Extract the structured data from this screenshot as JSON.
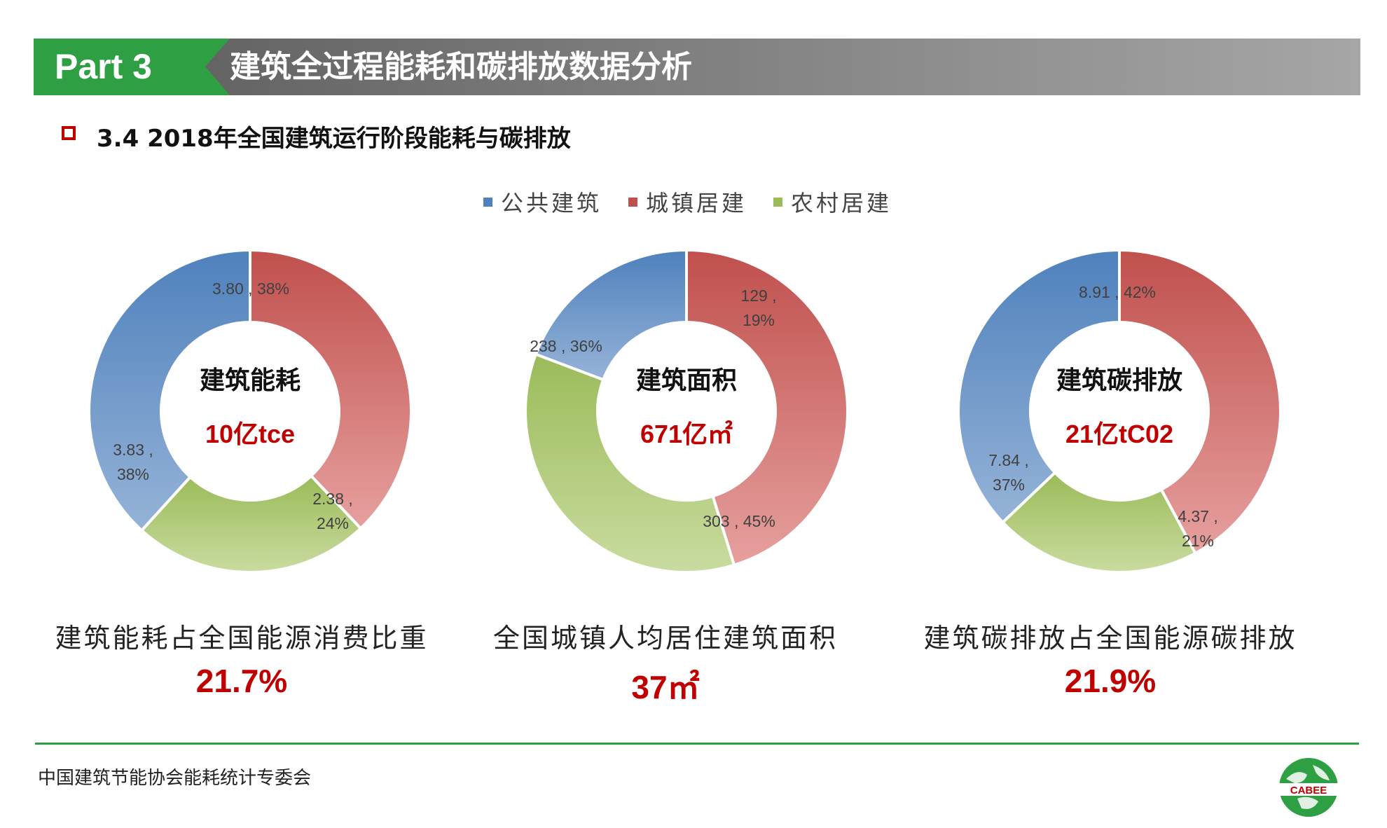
{
  "header": {
    "part": "Part 3",
    "title": "建筑全过程能耗和碳排放数据分析"
  },
  "section": {
    "title": "3.4 2018年全国建筑运行阶段能耗与碳排放"
  },
  "legend": [
    {
      "label": "公共建筑",
      "color": "#4f81bd"
    },
    {
      "label": "城镇居建",
      "color": "#c0504d"
    },
    {
      "label": "农村居建",
      "color": "#9bbb59"
    }
  ],
  "chart_data": [
    {
      "type": "pie",
      "center_title": "建筑能耗",
      "center_value": "10亿tce",
      "categories": [
        "公共建筑",
        "城镇居建",
        "农村居建"
      ],
      "values": [
        3.83,
        3.8,
        2.38
      ],
      "percent": [
        38,
        38,
        24
      ],
      "labels": [
        "3.83 ,\n38%",
        "3.80 , 38%",
        "2.38 ,\n24%"
      ]
    },
    {
      "type": "pie",
      "center_title": "建筑面积",
      "center_value": "671亿㎡",
      "categories": [
        "公共建筑",
        "城镇居建",
        "农村居建"
      ],
      "values": [
        129,
        303,
        238
      ],
      "percent": [
        19,
        45,
        36
      ],
      "labels": [
        "129 ,\n19%",
        "303 , 45%",
        "238 , 36%"
      ]
    },
    {
      "type": "pie",
      "center_title": "建筑碳排放",
      "center_value": "21亿tC02",
      "categories": [
        "公共建筑",
        "城镇居建",
        "农村居建"
      ],
      "values": [
        7.84,
        8.91,
        4.37
      ],
      "percent": [
        37,
        42,
        21
      ],
      "labels": [
        "7.84 ,\n37%",
        "8.91 , 42%",
        "4.37 ,\n21%"
      ]
    }
  ],
  "captions": [
    {
      "text": "建筑能耗占全国能源消费比重",
      "value": "21.7%"
    },
    {
      "text": "全国城镇人均居住建筑面积",
      "value": "37㎡"
    },
    {
      "text": "建筑碳排放占全国能源碳排放",
      "value": "21.9%"
    }
  ],
  "footer": {
    "org": "中国建筑节能协会能耗统计专委会",
    "logo_text": "CABEE"
  }
}
